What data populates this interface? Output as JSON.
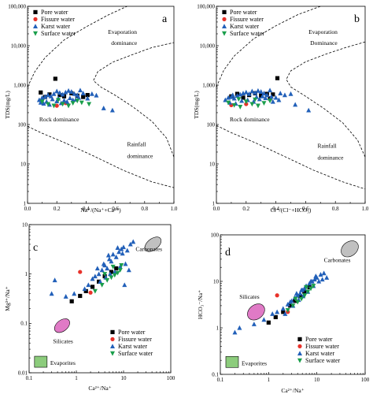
{
  "chart_data": [
    {
      "type": "scatter",
      "panel": "a",
      "xscale": "linear",
      "yscale": "log",
      "xlim": [
        0,
        1.0
      ],
      "ylim": [
        1,
        100000
      ],
      "xticks": [
        "0.0",
        "0.2",
        "0.4",
        "0.6",
        "0.8",
        "1.0"
      ],
      "yticks": [
        "1",
        "10",
        "100",
        "1,000",
        "10,000",
        "100,000"
      ],
      "xlabel": "Na⁺/(Na⁺+Ca²⁺)",
      "ylabel": "TDS(mg/L)",
      "legend_position": "top-left",
      "annotations": [
        "Evaporation dominance",
        "Rock dominance",
        "Rainfall dominance"
      ],
      "series": [
        {
          "name": "Pore water",
          "values": [
            [
              0.09,
              650
            ],
            [
              0.12,
              500
            ],
            [
              0.15,
              580
            ],
            [
              0.19,
              1450
            ],
            [
              0.22,
              560
            ],
            [
              0.25,
              520
            ],
            [
              0.3,
              620
            ],
            [
              0.34,
              540
            ],
            [
              0.38,
              500
            ],
            [
              0.41,
              560
            ]
          ]
        },
        {
          "name": "Fissure water",
          "values": [
            [
              0.2,
              300
            ],
            [
              0.26,
              350
            ]
          ]
        },
        {
          "name": "Karst water",
          "values": [
            [
              0.08,
              420
            ],
            [
              0.1,
              480
            ],
            [
              0.12,
              510
            ],
            [
              0.14,
              560
            ],
            [
              0.16,
              520
            ],
            [
              0.18,
              600
            ],
            [
              0.2,
              700
            ],
            [
              0.22,
              640
            ],
            [
              0.24,
              580
            ],
            [
              0.26,
              660
            ],
            [
              0.28,
              720
            ],
            [
              0.3,
              680
            ],
            [
              0.32,
              600
            ],
            [
              0.34,
              560
            ],
            [
              0.36,
              740
            ],
            [
              0.38,
              620
            ],
            [
              0.13,
              380
            ],
            [
              0.17,
              440
            ],
            [
              0.21,
              460
            ],
            [
              0.25,
              410
            ],
            [
              0.29,
              470
            ],
            [
              0.33,
              430
            ],
            [
              0.09,
              360
            ],
            [
              0.11,
              340
            ],
            [
              0.15,
              320
            ],
            [
              0.2,
              390
            ],
            [
              0.23,
              350
            ],
            [
              0.27,
              380
            ],
            [
              0.31,
              420
            ],
            [
              0.35,
              480
            ],
            [
              0.41,
              460
            ],
            [
              0.44,
              600
            ],
            [
              0.47,
              550
            ],
            [
              0.52,
              260
            ],
            [
              0.58,
              230
            ]
          ]
        },
        {
          "name": "Surface water",
          "values": [
            [
              0.1,
              380
            ],
            [
              0.14,
              330
            ],
            [
              0.18,
              300
            ],
            [
              0.21,
              420
            ],
            [
              0.24,
              330
            ],
            [
              0.28,
              300
            ],
            [
              0.31,
              350
            ],
            [
              0.34,
              400
            ],
            [
              0.37,
              360
            ],
            [
              0.42,
              330
            ]
          ]
        }
      ]
    },
    {
      "type": "scatter",
      "panel": "b",
      "xscale": "linear",
      "yscale": "log",
      "xlim": [
        0,
        1.0
      ],
      "ylim": [
        1,
        100000
      ],
      "xticks": [
        "0.0",
        "0.2",
        "0.4",
        "0.6",
        "0.8",
        "1.0"
      ],
      "yticks": [
        "1",
        "10",
        "100",
        "1,000",
        "10,000",
        "100,000"
      ],
      "xlabel": "Cl⁻/(Cl⁻+HCO₃)",
      "ylabel": "TDS(mg/L)",
      "legend_position": "top-left",
      "annotations": [
        "Evaporation Dominance",
        "Rock dominance",
        "Rainfall dominance"
      ],
      "series": [
        {
          "name": "Pore water",
          "values": [
            [
              0.1,
              520
            ],
            [
              0.14,
              600
            ],
            [
              0.18,
              480
            ],
            [
              0.22,
              560
            ],
            [
              0.26,
              620
            ],
            [
              0.3,
              540
            ],
            [
              0.34,
              600
            ],
            [
              0.38,
              580
            ],
            [
              0.41,
              1500
            ],
            [
              0.36,
              460
            ]
          ]
        },
        {
          "name": "Fissure water",
          "values": [
            [
              0.1,
              310
            ],
            [
              0.2,
              330
            ]
          ]
        },
        {
          "name": "Karst water",
          "values": [
            [
              0.06,
              420
            ],
            [
              0.08,
              480
            ],
            [
              0.1,
              500
            ],
            [
              0.12,
              460
            ],
            [
              0.14,
              540
            ],
            [
              0.16,
              580
            ],
            [
              0.18,
              620
            ],
            [
              0.2,
              660
            ],
            [
              0.22,
              600
            ],
            [
              0.24,
              700
            ],
            [
              0.26,
              640
            ],
            [
              0.28,
              720
            ],
            [
              0.3,
              680
            ],
            [
              0.32,
              620
            ],
            [
              0.34,
              560
            ],
            [
              0.36,
              740
            ],
            [
              0.09,
              360
            ],
            [
              0.13,
              340
            ],
            [
              0.17,
              400
            ],
            [
              0.21,
              420
            ],
            [
              0.25,
              380
            ],
            [
              0.29,
              440
            ],
            [
              0.33,
              470
            ],
            [
              0.37,
              510
            ],
            [
              0.4,
              480
            ],
            [
              0.43,
              620
            ],
            [
              0.46,
              560
            ],
            [
              0.38,
              380
            ],
            [
              0.42,
              420
            ],
            [
              0.5,
              600
            ],
            [
              0.53,
              320
            ],
            [
              0.62,
              230
            ],
            [
              0.11,
              560
            ],
            [
              0.27,
              500
            ],
            [
              0.31,
              520
            ]
          ]
        },
        {
          "name": "Surface water",
          "values": [
            [
              0.08,
              360
            ],
            [
              0.12,
              310
            ],
            [
              0.16,
              280
            ],
            [
              0.2,
              380
            ],
            [
              0.24,
              330
            ],
            [
              0.28,
              300
            ],
            [
              0.32,
              350
            ],
            [
              0.36,
              400
            ],
            [
              0.15,
              440
            ],
            [
              0.26,
              430
            ]
          ]
        }
      ]
    },
    {
      "type": "scatter",
      "panel": "c",
      "xscale": "log",
      "yscale": "log",
      "xlim": [
        0.1,
        100
      ],
      "ylim": [
        0.01,
        10
      ],
      "xticks": [
        "0.1",
        "1",
        "10",
        "100"
      ],
      "yticks": [
        "0.01",
        "0.1",
        "1",
        "10"
      ],
      "xlabel": "Ca²⁺/Na⁺",
      "ylabel": "Mg²⁺/Na⁺",
      "legend_position": "bottom-right",
      "annotations": [
        "Carbonates",
        "Silicates",
        "Evaporites"
      ],
      "series": [
        {
          "name": "Pore water",
          "values": [
            [
              0.8,
              0.28
            ],
            [
              1.2,
              0.36
            ],
            [
              1.6,
              0.45
            ],
            [
              2.2,
              0.55
            ],
            [
              3.0,
              0.7
            ],
            [
              4.0,
              0.9
            ],
            [
              5.5,
              1.1
            ],
            [
              7.0,
              1.3
            ]
          ]
        },
        {
          "name": "Fissure water",
          "values": [
            [
              1.2,
              1.1
            ],
            [
              2.0,
              0.42
            ]
          ]
        },
        {
          "name": "Karst water",
          "values": [
            [
              0.3,
              0.4
            ],
            [
              0.35,
              0.75
            ],
            [
              0.6,
              0.35
            ],
            [
              0.9,
              0.4
            ],
            [
              1.5,
              0.5
            ],
            [
              1.8,
              0.6
            ],
            [
              2.2,
              0.8
            ],
            [
              2.5,
              0.9
            ],
            [
              3.0,
              1.0
            ],
            [
              3.5,
              1.2
            ],
            [
              4.0,
              1.5
            ],
            [
              4.5,
              1.3
            ],
            [
              5.0,
              2.0
            ],
            [
              5.5,
              1.8
            ],
            [
              6.0,
              2.5
            ],
            [
              7.0,
              2.2
            ],
            [
              8.0,
              2.8
            ],
            [
              9.0,
              3.2
            ],
            [
              10,
              3.5
            ],
            [
              12,
              3.0
            ],
            [
              14,
              4.0
            ],
            [
              16,
              4.5
            ],
            [
              3.2,
              0.7
            ],
            [
              4.2,
              0.85
            ],
            [
              5.2,
              1.0
            ],
            [
              6.5,
              1.1
            ],
            [
              8.5,
              1.4
            ],
            [
              11,
              1.6
            ],
            [
              13,
              1.2
            ],
            [
              10.5,
              0.6
            ],
            [
              2.8,
              1.3
            ],
            [
              4.8,
              2.4
            ],
            [
              7.5,
              3.4
            ],
            [
              9.5,
              2.6
            ],
            [
              3.8,
              1.6
            ]
          ]
        },
        {
          "name": "Surface water",
          "values": [
            [
              2.5,
              0.45
            ],
            [
              3.5,
              0.6
            ],
            [
              4.5,
              0.75
            ],
            [
              5.5,
              0.85
            ],
            [
              6.5,
              0.95
            ],
            [
              7.5,
              1.05
            ],
            [
              8.5,
              1.2
            ],
            [
              4.0,
              1.0
            ],
            [
              6.0,
              1.4
            ],
            [
              9.0,
              1.5
            ]
          ]
        }
      ]
    },
    {
      "type": "scatter",
      "panel": "d",
      "xscale": "log",
      "yscale": "log",
      "xlim": [
        0.1,
        100
      ],
      "ylim": [
        0.1,
        100
      ],
      "xticks": [
        "0.1",
        "1",
        "10",
        "100"
      ],
      "yticks": [
        "0.1",
        "1",
        "10",
        "100"
      ],
      "xlabel": "Ca²⁺/Na⁺",
      "ylabel": "HCO₃⁻/Na⁺",
      "legend_position": "bottom-right",
      "annotations": [
        "Carbonates",
        "Silicates",
        "Evaporites"
      ],
      "series": [
        {
          "name": "Pore water",
          "values": [
            [
              1.0,
              1.3
            ],
            [
              1.4,
              1.7
            ],
            [
              2.0,
              2.2
            ],
            [
              2.8,
              3.0
            ],
            [
              3.5,
              3.8
            ],
            [
              4.5,
              4.8
            ],
            [
              5.5,
              6.0
            ],
            [
              7.0,
              7.5
            ]
          ]
        },
        {
          "name": "Fissure water",
          "values": [
            [
              1.5,
              5.0
            ],
            [
              2.5,
              2.2
            ]
          ]
        },
        {
          "name": "Karst water",
          "values": [
            [
              0.2,
              0.8
            ],
            [
              0.25,
              1.0
            ],
            [
              0.5,
              1.2
            ],
            [
              0.8,
              1.5
            ],
            [
              1.2,
              2.0
            ],
            [
              1.5,
              2.2
            ],
            [
              2.0,
              2.6
            ],
            [
              2.5,
              3.2
            ],
            [
              3.0,
              3.8
            ],
            [
              3.5,
              4.5
            ],
            [
              4.0,
              5.0
            ],
            [
              4.5,
              5.5
            ],
            [
              5.0,
              6.5
            ],
            [
              5.5,
              7.0
            ],
            [
              6.0,
              8.0
            ],
            [
              7.0,
              9.0
            ],
            [
              8.0,
              10
            ],
            [
              9.0,
              11
            ],
            [
              10,
              12
            ],
            [
              12,
              14
            ],
            [
              14,
              15
            ],
            [
              16,
              12
            ],
            [
              2.2,
              2.0
            ],
            [
              3.2,
              3.0
            ],
            [
              4.2,
              4.0
            ],
            [
              5.2,
              4.8
            ],
            [
              6.5,
              6.0
            ],
            [
              8.5,
              8.0
            ],
            [
              11,
              10
            ],
            [
              13,
              11
            ],
            [
              2.8,
              3.6
            ],
            [
              4.8,
              6.5
            ],
            [
              7.5,
              10
            ],
            [
              9.5,
              13
            ],
            [
              3.8,
              5.5
            ]
          ]
        },
        {
          "name": "Surface water",
          "values": [
            [
              2.5,
              2.4
            ],
            [
              3.2,
              3.0
            ],
            [
              4.0,
              3.6
            ],
            [
              4.8,
              4.2
            ],
            [
              5.6,
              5.0
            ],
            [
              6.5,
              6.0
            ],
            [
              7.5,
              7.0
            ],
            [
              8.5,
              8.0
            ],
            [
              3.6,
              4.2
            ],
            [
              6.0,
              7.5
            ]
          ]
        }
      ]
    }
  ],
  "colors": {
    "pore": "#000000",
    "fissure": "#e8322a",
    "karst": "#2260b9",
    "surface": "#1a9e4b",
    "silicates": "#e07ac6",
    "carbonates": "#c0c0c0",
    "evaporites": "#8ccc7c"
  }
}
